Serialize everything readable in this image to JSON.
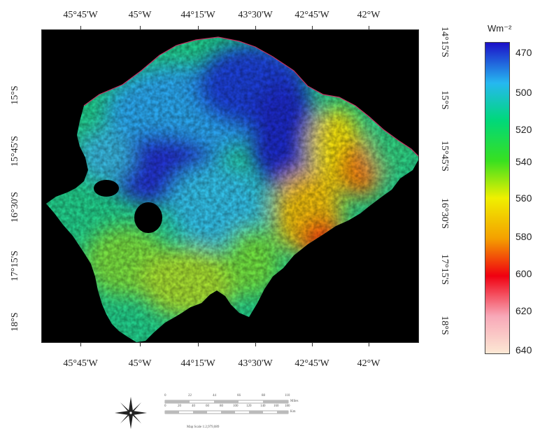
{
  "map": {
    "top_ticks": [
      "45°45'W",
      "45°W",
      "44°15'W",
      "43°30'W",
      "42°45'W",
      "42°W"
    ],
    "bottom_ticks": [
      "45°45'W",
      "45°W",
      "44°15'W",
      "43°30'W",
      "42°45'W",
      "42°W"
    ],
    "left_ticks": [
      "15°S",
      "15°45'S",
      "16°30'S",
      "17°15'S",
      "18°S"
    ],
    "right_ticks": [
      "14°15'S",
      "15°S",
      "15°45'S",
      "16°30'S",
      "17°15'S",
      "18°S"
    ]
  },
  "legend": {
    "title": "Wm⁻²",
    "labels": [
      "470",
      "500",
      "520",
      "540",
      "560",
      "580",
      "600",
      "620",
      "640"
    ],
    "colors": [
      "#1c10c8",
      "#26b8f0",
      "#00d87a",
      "#38e020",
      "#f0f000",
      "#f4a000",
      "#f00010",
      "#f8a8b8",
      "#fce8d4"
    ]
  },
  "scale": {
    "miles_ticks": [
      "0",
      "22",
      "44",
      "66",
      "88",
      "110"
    ],
    "miles_unit": "Miles",
    "km_ticks": [
      "0",
      "20",
      "40",
      "60",
      "80",
      "100",
      "120",
      "140",
      "160",
      "180"
    ],
    "km_unit": "Km",
    "caption": "Map Scale 1:2,979,089"
  },
  "north_arrow_icon": "compass-rose-icon"
}
